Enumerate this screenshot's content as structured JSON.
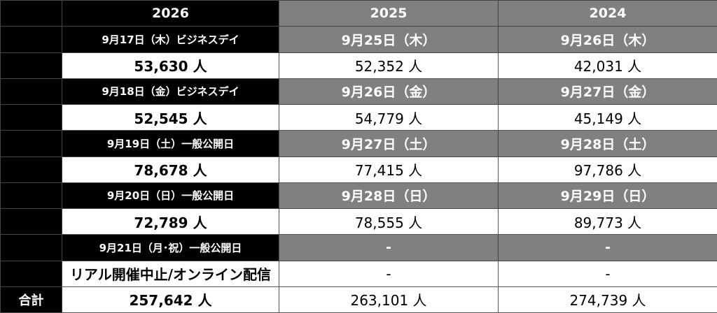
{
  "table": {
    "header": [
      "2026",
      "2025",
      "2024"
    ],
    "rows": [
      [
        "9月17日（木）ビジネスデイ",
        "9月25日（木）",
        "9月26日（木）"
      ],
      [
        "53,630 人",
        "52,352 人",
        "42,031 人"
      ],
      [
        "9月18日（金）ビジネスデイ",
        "9月26日（金）",
        "9月27日（金）"
      ],
      [
        "52,545 人",
        "54,779 人",
        "45,149 人"
      ],
      [
        "9月19日（土）一般公開日",
        "9月27日（土）",
        "9月28日（土）"
      ],
      [
        "78,678 人",
        "77,415 人",
        "97,786 人"
      ],
      [
        "9月20日（日）一般公開日",
        "9月28日（日）",
        "9月29日（日）"
      ],
      [
        "72,789 人",
        "78,555 人",
        "89,773 人"
      ],
      [
        "9月21日（月･祝）一般公開日",
        "-",
        "-"
      ],
      [
        "リアル開催中止/オンライン配信",
        "-",
        "-"
      ]
    ],
    "total": {
      "label": "合計",
      "cells": [
        "257,642 人",
        "263,101 人",
        "274,739 人"
      ]
    }
  }
}
